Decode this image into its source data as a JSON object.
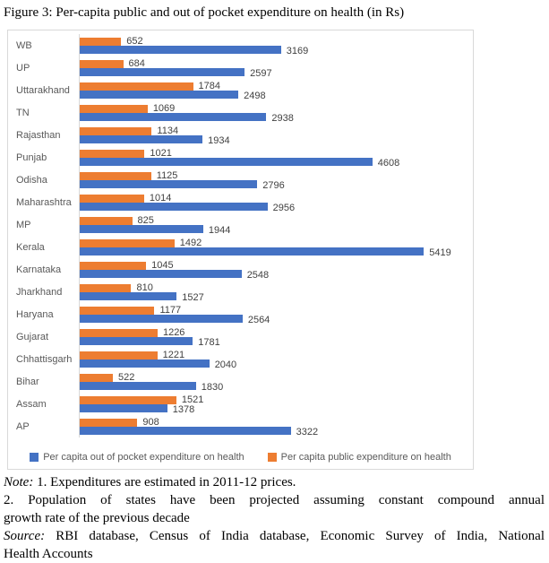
{
  "figure": {
    "title": "Figure 3: Per-capita public and out of pocket expenditure on health (in Rs)"
  },
  "chart_data": {
    "type": "bar",
    "orientation": "horizontal",
    "title": "Figure 3: Per-capita public and out of pocket expenditure on health (in Rs)",
    "categories": [
      "WB",
      "UP",
      "Uttarakhand",
      "TN",
      "Rajasthan",
      "Punjab",
      "Odisha",
      "Maharashtra",
      "MP",
      "Kerala",
      "Karnataka",
      "Jharkhand",
      "Haryana",
      "Gujarat",
      "Chhattisgarh",
      "Bihar",
      "Assam",
      "AP"
    ],
    "series": [
      {
        "name": "Per capita public expenditure on health",
        "key": "public",
        "color": "#ED7D31",
        "values": [
          652,
          684,
          1784,
          1069,
          1134,
          1021,
          1125,
          1014,
          825,
          1492,
          1045,
          810,
          1177,
          1226,
          1221,
          522,
          1521,
          908
        ]
      },
      {
        "name": "Per capita out of pocket expenditure on health",
        "key": "oop",
        "color": "#4472C4",
        "values": [
          3169,
          2597,
          2498,
          2938,
          1934,
          4608,
          2796,
          2956,
          1944,
          5419,
          2548,
          1527,
          2564,
          1781,
          2040,
          1830,
          1378,
          3322
        ]
      }
    ],
    "xlim": [
      0,
      6190
    ],
    "grid": false,
    "legend_position": "bottom",
    "legend": [
      {
        "label": "Per capita out of pocket expenditure on health",
        "color": "#4472C4"
      },
      {
        "label": "Per capita public expenditure on health",
        "color": "#ED7D31"
      }
    ],
    "colors": {
      "category_label": "#595959",
      "value_label": "#404040",
      "border": "#D9D9D9"
    }
  },
  "notes": {
    "lines": [
      {
        "prefix": "Note:",
        "text": " 1. Expenditures are estimated in 2011-12 prices.",
        "justify": false
      },
      {
        "prefix": "",
        "text": "2. Population of states have been projected assuming constant compound annual",
        "justify": true
      },
      {
        "prefix": "",
        "text": "growth rate of the previous decade",
        "justify": false
      },
      {
        "prefix": "Source:",
        "text": " RBI database, Census of India database, Economic Survey of India, National",
        "justify": true
      },
      {
        "prefix": "",
        "text": "Health Accounts",
        "justify": false
      }
    ]
  }
}
